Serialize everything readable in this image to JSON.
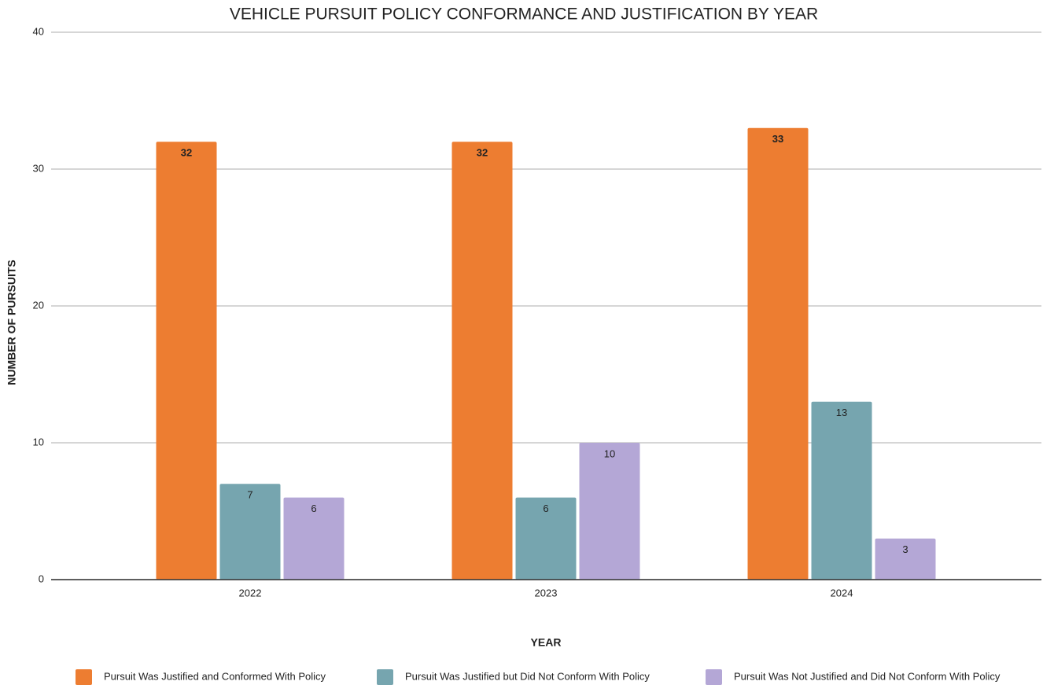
{
  "chart_data": {
    "type": "bar",
    "title": "VEHICLE PURSUIT POLICY CONFORMANCE AND JUSTIFICATION BY YEAR",
    "x_label": "YEAR",
    "y_label": "NUMBER OF PURSUITS",
    "categories": [
      "2022",
      "2023",
      "2024"
    ],
    "series": [
      {
        "name": "Pursuit Was Justified and Conformed With Policy",
        "color": "#ed7d31",
        "values": [
          32,
          32,
          33
        ]
      },
      {
        "name": "Pursuit Was Justified but Did Not Conform With Policy",
        "color": "#76a5af",
        "values": [
          7,
          6,
          13
        ]
      },
      {
        "name": "Pursuit Was Not Justified and Did Not Conform With Policy",
        "color": "#b4a7d6",
        "values": [
          6,
          10,
          3
        ]
      }
    ],
    "ylim": [
      0,
      40
    ],
    "yticks": [
      0,
      10,
      20,
      30,
      40
    ],
    "grid": true,
    "legend": "bottom"
  }
}
